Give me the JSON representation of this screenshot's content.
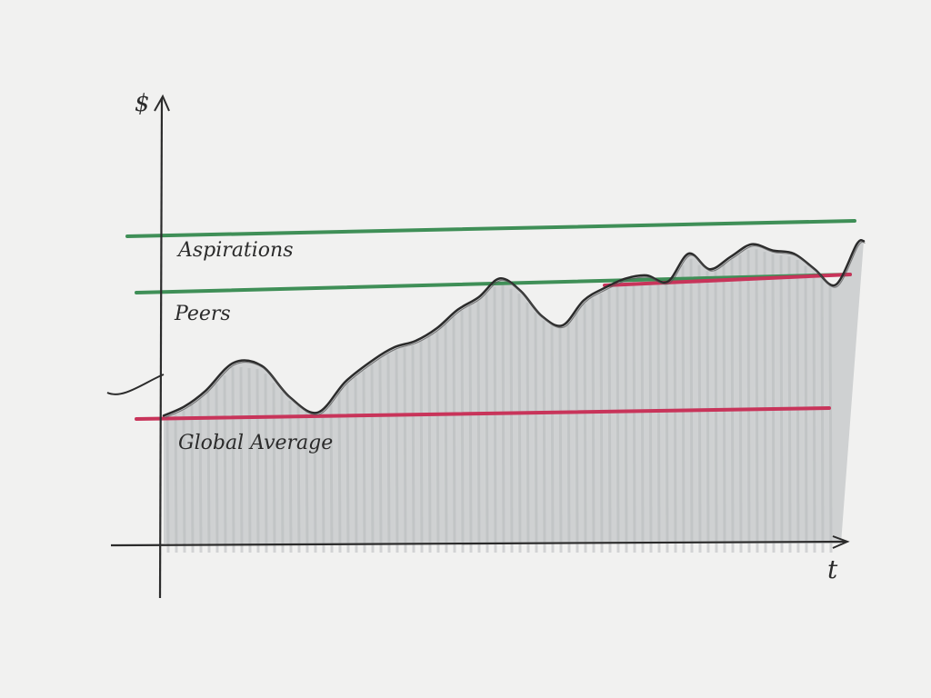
{
  "chart_data": {
    "type": "area",
    "xlabel": "t",
    "ylabel": "$",
    "xlim": [
      0,
      100
    ],
    "ylim": [
      0,
      100
    ],
    "grid": false,
    "legend": "none",
    "series": [
      {
        "x": [
          0,
          3,
          6,
          10,
          14,
          18,
          22,
          26,
          30,
          33,
          36,
          39,
          42,
          45,
          48,
          51,
          54,
          57,
          60,
          63,
          66,
          69,
          72,
          75,
          78,
          81,
          84,
          87,
          90,
          93,
          96,
          99,
          100
        ],
        "values": [
          41,
          44,
          49,
          58,
          57,
          47,
          42,
          52,
          59,
          63,
          65,
          69,
          75,
          79,
          85,
          81,
          73,
          70,
          78,
          82,
          85,
          86,
          84,
          93,
          88,
          92,
          96,
          94,
          93,
          88,
          83,
          96,
          97
        ]
      }
    ],
    "reference_lines": [
      {
        "label": "Aspirations",
        "color": "#3f8f57"
      },
      {
        "label": "Peers",
        "color": "#3f8f57"
      },
      {
        "label": "Global Average",
        "color": "#c8345a"
      }
    ]
  },
  "colors": {
    "background": "#f1f1f0",
    "ink": "#2b2b2b",
    "fill": "#c9cbcc",
    "green": "#3f8f57",
    "red": "#c8345a"
  }
}
